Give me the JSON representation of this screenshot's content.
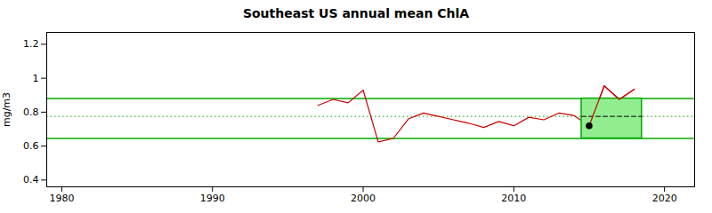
{
  "chart_data": {
    "type": "line",
    "title": "Southeast US annual mean ChlA",
    "ylabel": "mg/m3",
    "x": [
      1997,
      1998,
      1999,
      2000,
      2001,
      2002,
      2003,
      2004,
      2005,
      2006,
      2007,
      2008,
      2009,
      2010,
      2011,
      2012,
      2013,
      2014,
      2015,
      2016,
      2017,
      2018
    ],
    "values": [
      0.84,
      0.875,
      0.855,
      0.93,
      0.625,
      0.645,
      0.76,
      0.795,
      0.775,
      0.755,
      0.735,
      0.71,
      0.745,
      0.72,
      0.77,
      0.755,
      0.795,
      0.78,
      0.72,
      0.955,
      0.875,
      0.935
    ],
    "color": "#cc0000",
    "xlim": [
      1979,
      2022
    ],
    "ylim": [
      0.36,
      1.27
    ],
    "xticks": [
      1980,
      1990,
      2000,
      2010,
      2020
    ],
    "yticks": [
      0.4,
      0.6,
      0.8,
      1,
      1.2
    ],
    "grid": false,
    "bands": [
      {
        "value": 0.88,
        "color": "#00aa00",
        "line_style": "solid"
      },
      {
        "value": 0.645,
        "color": "#00aa00",
        "line_style": "solid"
      },
      {
        "value": 0.775,
        "color": "#00aa00",
        "line_style": "dotted"
      }
    ],
    "highlight": {
      "x_start": 2014.5,
      "x_end": 2018.5,
      "y_start": 0.645,
      "y_end": 0.88,
      "color": "#90ee90",
      "mean": {
        "value": 0.775,
        "color": "black",
        "line_style": "dashed"
      },
      "x": [
        2015,
        2016,
        2017,
        2018
      ],
      "values": [
        0.72,
        0.955,
        0.875,
        0.935
      ]
    },
    "min_point": {
      "x": 2015,
      "value": 0.72,
      "color": "black",
      "marker": "circle"
    }
  }
}
